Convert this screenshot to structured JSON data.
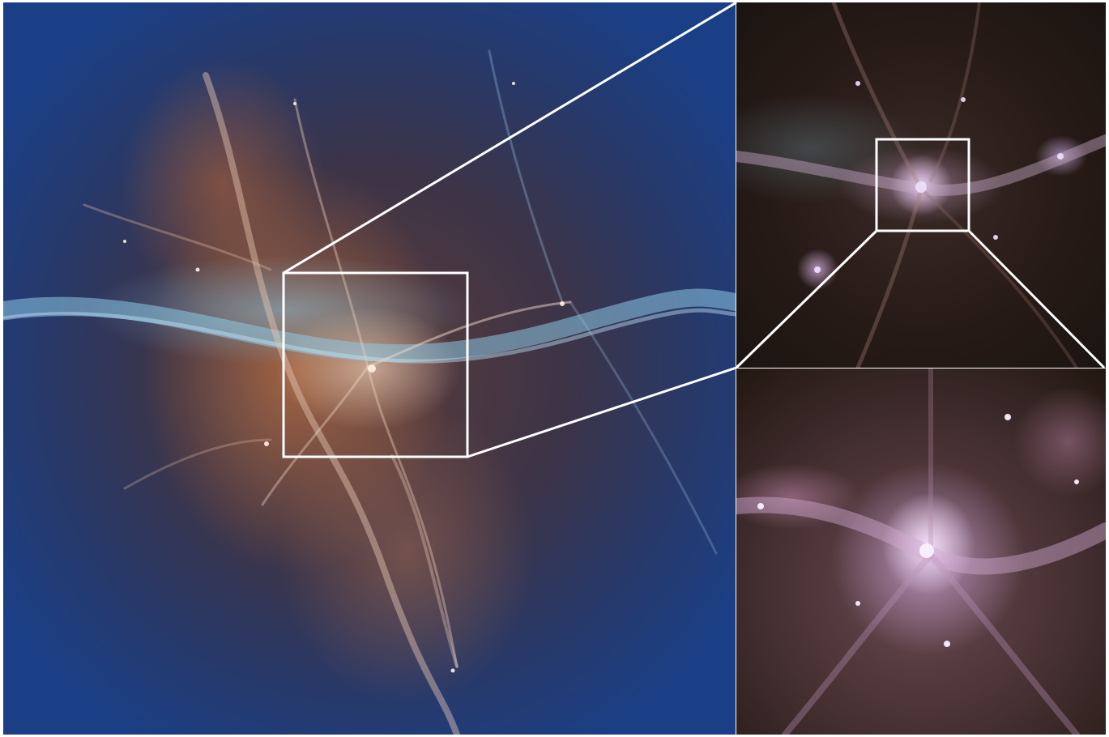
{
  "figure": {
    "panels": [
      {
        "id": "main",
        "description_kind": "large-scale cosmic web simulation render"
      },
      {
        "id": "zoom-1",
        "description_kind": "first zoom inset"
      },
      {
        "id": "zoom-2",
        "description_kind": "second zoom inset"
      }
    ],
    "frame_color": "#ffffff",
    "palette": {
      "void_blue": "#1a3f86",
      "filament_orange": "#b06c44",
      "filament_cyan": "#82bedc",
      "halo_lilac": "#ebd2f5",
      "dark_background": "#1b1410"
    }
  }
}
